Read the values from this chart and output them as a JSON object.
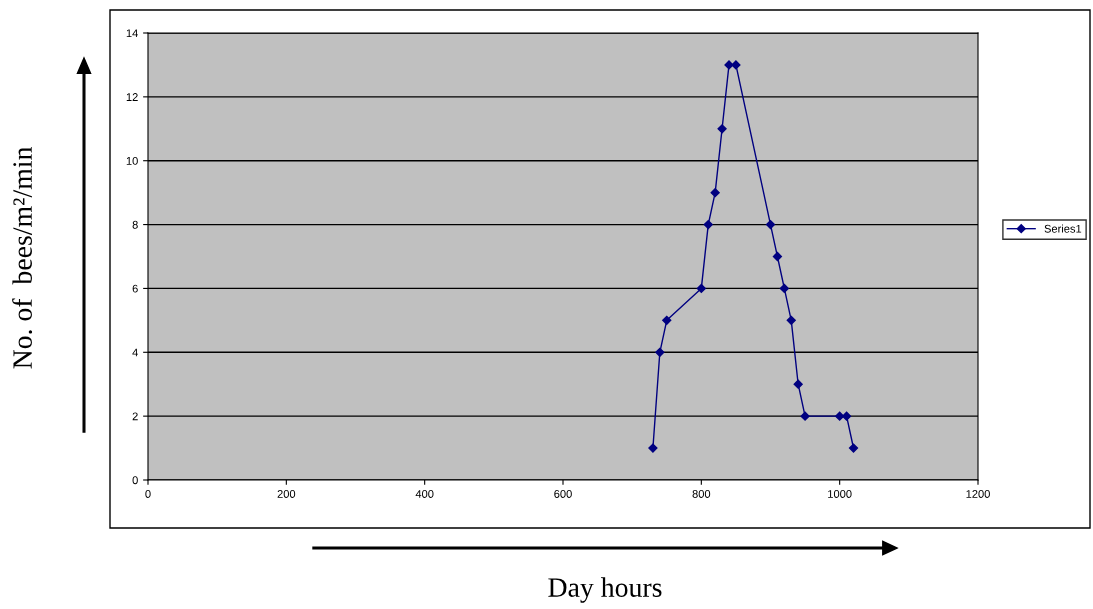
{
  "chart_data": {
    "type": "line",
    "xlabel": "Day hours",
    "ylabel": "No. of  bees/m²/min",
    "x": [
      730,
      740,
      750,
      800,
      810,
      820,
      830,
      840,
      850,
      900,
      910,
      920,
      930,
      940,
      950,
      1000,
      1010,
      1020
    ],
    "series": [
      {
        "name": "Series1",
        "color": "#000080",
        "values": [
          1,
          4,
          5,
          6,
          8,
          9,
          11,
          13,
          13,
          8,
          7,
          6,
          5,
          3,
          2,
          2,
          2,
          1
        ]
      }
    ],
    "xlim": [
      0,
      1200
    ],
    "xticks": [
      0,
      200,
      400,
      600,
      800,
      1000,
      1200
    ],
    "ylim": [
      0,
      14
    ],
    "yticks": [
      0,
      2,
      4,
      6,
      8,
      10,
      12,
      14
    ],
    "grid": "y",
    "legend": "right",
    "marker": "diamond",
    "line_style": "solid"
  }
}
